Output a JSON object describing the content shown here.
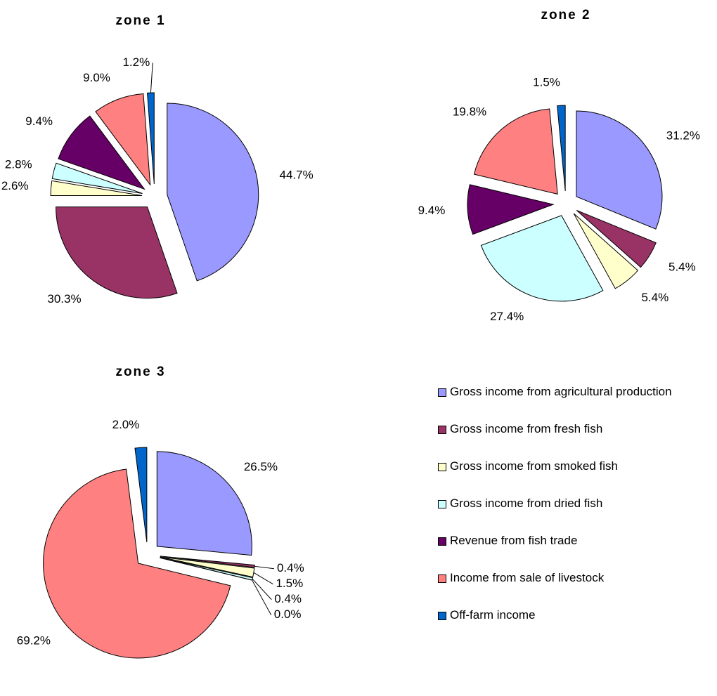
{
  "chart_data": [
    {
      "type": "pie",
      "title": "zone 1",
      "categories": [
        "Gross income from agricultural production",
        "Gross income from fresh fish",
        "Gross income from smoked fish",
        "Gross income from dried fish",
        "Revenue from fish trade",
        "Income from sale of livestock",
        "Off-farm income"
      ],
      "colors": [
        "#9999ff",
        "#993366",
        "#ffffcc",
        "#ccffff",
        "#660066",
        "#ff8080",
        "#0066cc"
      ],
      "values": [
        44.7,
        30.3,
        2.6,
        2.8,
        9.4,
        9.0,
        1.2
      ],
      "value_labels": [
        "44.7%",
        "30.3%",
        "2.6%",
        "2.8%",
        "9.4%",
        "9.0%",
        "1.2%"
      ]
    },
    {
      "type": "pie",
      "title": "zone 2",
      "values": [
        31.2,
        5.4,
        5.4,
        27.4,
        9.4,
        19.8,
        1.5
      ],
      "value_labels": [
        "31.2%",
        "5.4%",
        "5.4%",
        "27.4%",
        "9.4%",
        "19.8%",
        "1.5%"
      ]
    },
    {
      "type": "pie",
      "title": "zone 3",
      "values": [
        26.5,
        0.4,
        1.5,
        0.4,
        0.0,
        69.2,
        2.0
      ],
      "value_labels": [
        "26.5%",
        "0.4%",
        "1.5%",
        "0.4%",
        "0.0%",
        "69.2%",
        "2.0%"
      ]
    }
  ]
}
